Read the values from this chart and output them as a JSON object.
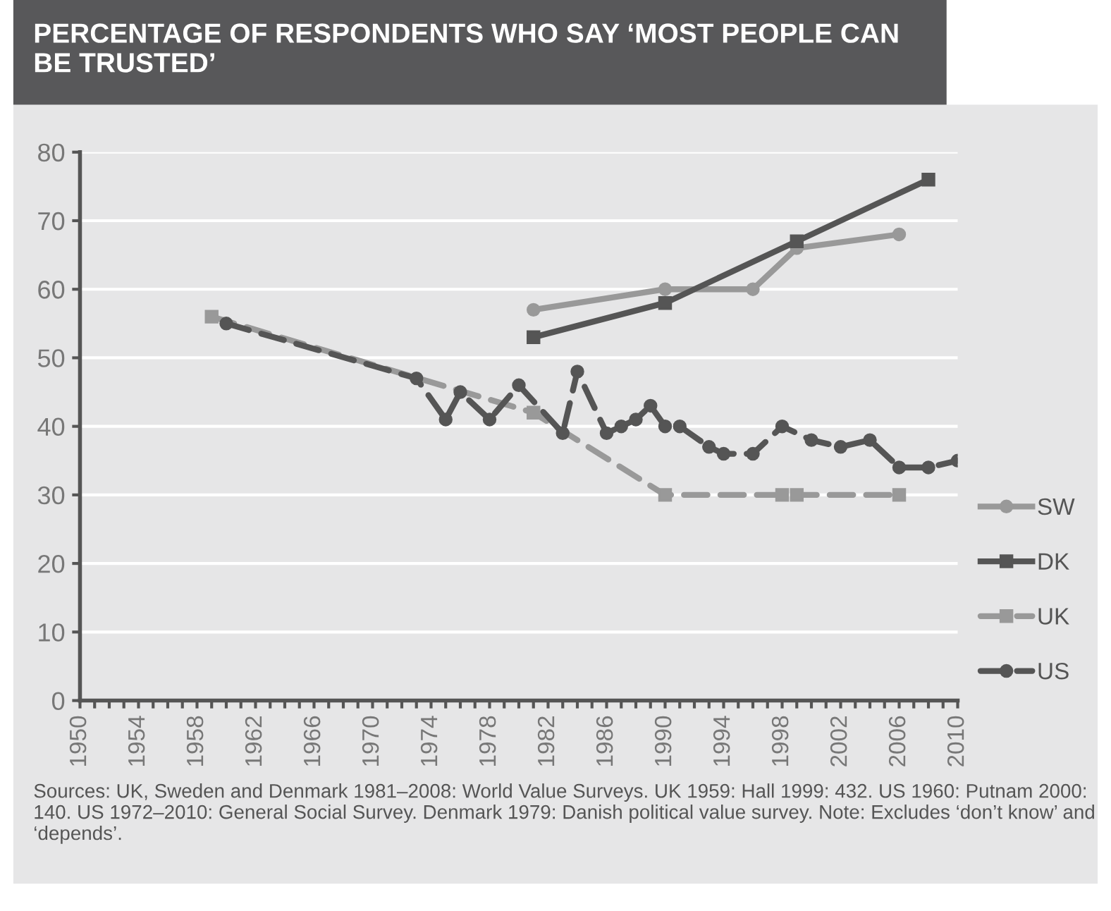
{
  "chart_data": {
    "type": "line",
    "title": "PERCENTAGE OF RESPONDENTS WHO SAY ‘MOST PEOPLE CAN BE TRUSTED’",
    "annotations": [
      "Sources: UK, Sweden and Denmark 1981–2008: World Value Surveys. UK 1959: Hall 1999: 432. US 1960: Putnam 2000: 140. US 1972–2010: General Social Survey. Denmark 1979: Danish political value survey. Note: Excludes ‘don’t know’ and ‘depends’."
    ],
    "series": [
      {
        "name": "SW",
        "color": "#999999",
        "marker": "circle",
        "line_style": "solid",
        "x": [
          1981,
          1990,
          1996,
          1999,
          2006
        ],
        "values": [
          57,
          60,
          60,
          66,
          68
        ]
      },
      {
        "name": "DK",
        "color": "#555555",
        "marker": "square",
        "line_style": "solid",
        "x": [
          1981,
          1990,
          1999,
          2008
        ],
        "values": [
          53,
          58,
          67,
          76
        ]
      },
      {
        "name": "UK",
        "color": "#999999",
        "marker": "square",
        "line_style": "dashed",
        "x": [
          1959,
          1981,
          1990,
          1998,
          1999,
          2006
        ],
        "values": [
          56,
          42,
          30,
          30,
          30,
          30
        ]
      },
      {
        "name": "US",
        "color": "#555555",
        "marker": "circle",
        "line_style": "dashed",
        "x": [
          1960,
          1973,
          1975,
          1976,
          1978,
          1980,
          1983,
          1984,
          1986,
          1987,
          1988,
          1989,
          1990,
          1991,
          1993,
          1994,
          1996,
          1998,
          2000,
          2002,
          2004,
          2006,
          2008,
          2010
        ],
        "values": [
          55,
          47,
          41,
          45,
          41,
          46,
          39,
          48,
          39,
          40,
          41,
          43,
          40,
          40,
          37,
          36,
          36,
          40,
          38,
          37,
          38,
          34,
          34,
          35
        ]
      }
    ],
    "xlim": [
      1950,
      2010
    ],
    "xticks": [
      1950,
      {
        "value": 1951,
        "label": null
      },
      {
        "value": 1952,
        "label": null
      },
      {
        "value": 1953,
        "label": null
      },
      1954,
      {
        "value": 1955,
        "label": null
      },
      {
        "value": 1956,
        "label": null
      },
      {
        "value": 1957,
        "label": null
      },
      1958,
      {
        "value": 1959,
        "label": null
      },
      {
        "value": 1960,
        "label": null
      },
      {
        "value": 1961,
        "label": null
      },
      1962,
      {
        "value": 1963,
        "label": null
      },
      {
        "value": 1964,
        "label": null
      },
      {
        "value": 1965,
        "label": null
      },
      1966,
      {
        "value": 1967,
        "label": null
      },
      {
        "value": 1968,
        "label": null
      },
      {
        "value": 1969,
        "label": null
      },
      1970,
      {
        "value": 1971,
        "label": null
      },
      {
        "value": 1972,
        "label": null
      },
      {
        "value": 1973,
        "label": null
      },
      1974,
      {
        "value": 1975,
        "label": null
      },
      {
        "value": 1976,
        "label": null
      },
      {
        "value": 1977,
        "label": null
      },
      1978,
      {
        "value": 1979,
        "label": null
      },
      {
        "value": 1980,
        "label": null
      },
      {
        "value": 1981,
        "label": null
      },
      1982,
      {
        "value": 1983,
        "label": null
      },
      {
        "value": 1984,
        "label": null
      },
      {
        "value": 1985,
        "label": null
      },
      1986,
      {
        "value": 1987,
        "label": null
      },
      {
        "value": 1988,
        "label": null
      },
      {
        "value": 1989,
        "label": null
      },
      1990,
      {
        "value": 1991,
        "label": null
      },
      {
        "value": 1992,
        "label": null
      },
      {
        "value": 1993,
        "label": null
      },
      1994,
      {
        "value": 1995,
        "label": null
      },
      {
        "value": 1996,
        "label": null
      },
      {
        "value": 1997,
        "label": null
      },
      1998,
      {
        "value": 1999,
        "label": null
      },
      {
        "value": 2000,
        "label": null
      },
      {
        "value": 2001,
        "label": null
      },
      2002,
      {
        "value": 2003,
        "label": null
      },
      {
        "value": 2004,
        "label": null
      },
      {
        "value": 2005,
        "label": null
      },
      2006,
      {
        "value": 2007,
        "label": null
      },
      {
        "value": 2008,
        "label": null
      },
      {
        "value": 2009,
        "label": null
      },
      2010
    ],
    "ylim": [
      0,
      80
    ],
    "yticks": [
      0,
      10,
      20,
      30,
      40,
      50,
      60,
      70,
      80
    ],
    "grid": "y",
    "legend": "right"
  }
}
